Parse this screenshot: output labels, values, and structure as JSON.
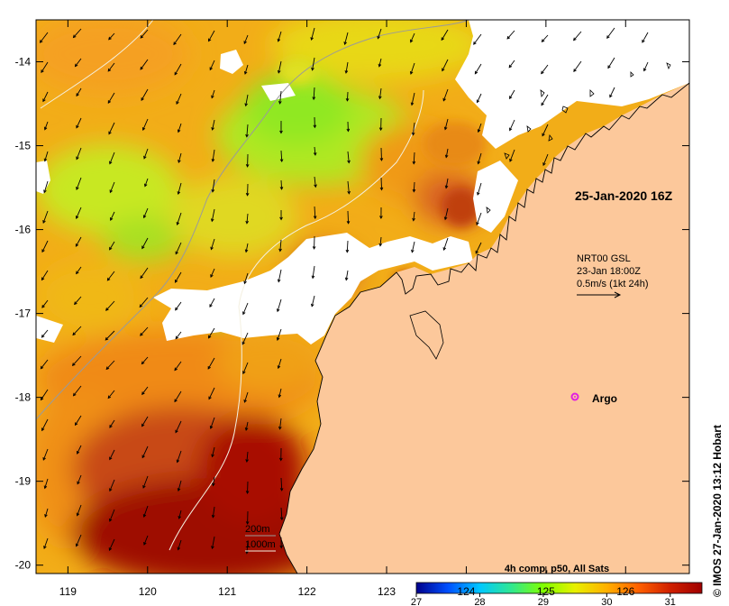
{
  "map": {
    "lon_ticks": [
      "119",
      "120",
      "121",
      "122",
      "123",
      "124",
      "125",
      "126"
    ],
    "lat_ticks": [
      "-14",
      "-15",
      "-16",
      "-17",
      "-18",
      "-19",
      "-20"
    ],
    "lon_range": [
      118.6,
      126.8
    ],
    "lat_range": [
      -20.1,
      -13.5
    ],
    "land_color": "#fcc89b",
    "no_data_color": "#ffffff"
  },
  "annotations": {
    "date": "25-Jan-2020 16Z",
    "current_title": "NRT00 GSL",
    "current_time": "23-Jan 18:00Z",
    "current_scale": "0.5m/s (1kt 24h)",
    "argo_label": "Argo",
    "depth_200": "200m",
    "depth_1000": "1000m",
    "credit": "© IMOS 27-Jan-2020 13:12 Hobart"
  },
  "colorbar": {
    "title": "4h comp, p50, All Sats",
    "ticks": [
      "27",
      "28",
      "29",
      "30",
      "31"
    ],
    "range": [
      27,
      31.5
    ],
    "colors": [
      "#00008b",
      "#0050ff",
      "#00c8ff",
      "#30e890",
      "#80ff00",
      "#e8f000",
      "#ffb000",
      "#ff6000",
      "#d02000",
      "#a00000"
    ]
  }
}
